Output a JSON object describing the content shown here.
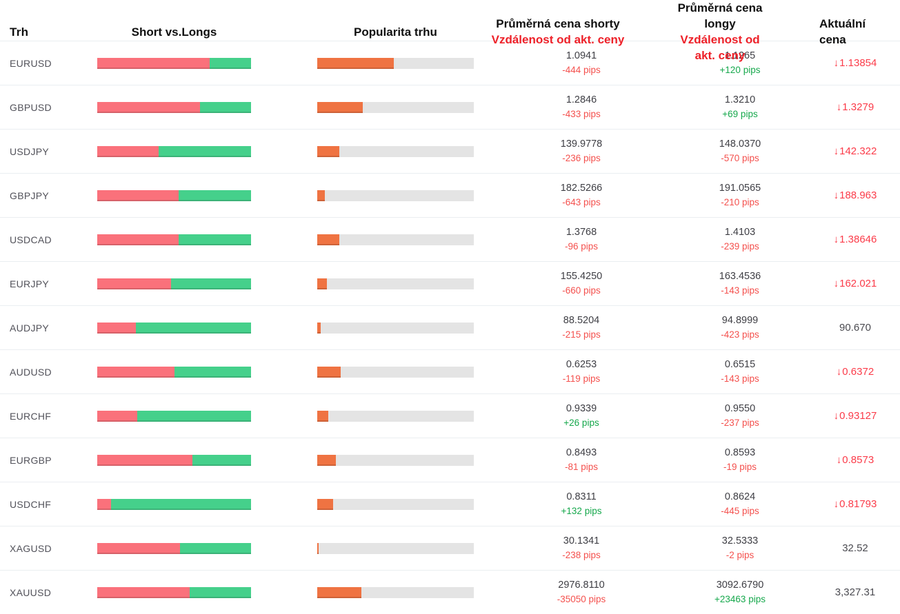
{
  "header": {
    "market": "Trh",
    "sentiment": "Short vs.Longs",
    "popularity": "Popularita trhu",
    "short_price_line1": "Průměrná cena shorty",
    "short_price_line2": "Vzdálenost od akt. ceny",
    "long_price_line1": "Průměrná cena longy",
    "long_price_line2": "Vzdálenost od akt. ceny",
    "current_line1": "Aktuální",
    "current_line2": "cena"
  },
  "icons": {
    "down_arrow": "↓"
  },
  "colors": {
    "sentiment_short": "#fa717b",
    "sentiment_long": "#45d08b",
    "popularity": "#ef7342",
    "bar_track": "#e4e4e4",
    "negative": "#f4504d",
    "positive": "#16a84c",
    "price_down": "#fb3b49",
    "header_red": "#ee2129"
  },
  "rows": [
    {
      "market": "EURUSD",
      "shorts_pct": 73,
      "longs_pct": 27,
      "popularity_pct": 49,
      "short_price": "1.0941",
      "short_pips": "-444 pips",
      "long_price": "1.1265",
      "long_pips": "+120 pips",
      "current_price": "1.13854",
      "current_trend": "down"
    },
    {
      "market": "GBPUSD",
      "shorts_pct": 67,
      "longs_pct": 33,
      "popularity_pct": 29,
      "short_price": "1.2846",
      "short_pips": "-433 pips",
      "long_price": "1.3210",
      "long_pips": "+69 pips",
      "current_price": "1.3279",
      "current_trend": "down"
    },
    {
      "market": "USDJPY",
      "shorts_pct": 40,
      "longs_pct": 60,
      "popularity_pct": 14,
      "short_price": "139.9778",
      "short_pips": "-236 pips",
      "long_price": "148.0370",
      "long_pips": "-570 pips",
      "current_price": "142.322",
      "current_trend": "down"
    },
    {
      "market": "GBPJPY",
      "shorts_pct": 53,
      "longs_pct": 47,
      "popularity_pct": 5,
      "short_price": "182.5266",
      "short_pips": "-643 pips",
      "long_price": "191.0565",
      "long_pips": "-210 pips",
      "current_price": "188.963",
      "current_trend": "down"
    },
    {
      "market": "USDCAD",
      "shorts_pct": 53,
      "longs_pct": 47,
      "popularity_pct": 14,
      "short_price": "1.3768",
      "short_pips": "-96 pips",
      "long_price": "1.4103",
      "long_pips": "-239 pips",
      "current_price": "1.38646",
      "current_trend": "down"
    },
    {
      "market": "EURJPY",
      "shorts_pct": 48,
      "longs_pct": 52,
      "popularity_pct": 6,
      "short_price": "155.4250",
      "short_pips": "-660 pips",
      "long_price": "163.4536",
      "long_pips": "-143 pips",
      "current_price": "162.021",
      "current_trend": "down"
    },
    {
      "market": "AUDJPY",
      "shorts_pct": 25,
      "longs_pct": 75,
      "popularity_pct": 2,
      "short_price": "88.5204",
      "short_pips": "-215 pips",
      "long_price": "94.8999",
      "long_pips": "-423 pips",
      "current_price": "90.670",
      "current_trend": "none"
    },
    {
      "market": "AUDUSD",
      "shorts_pct": 50,
      "longs_pct": 50,
      "popularity_pct": 15,
      "short_price": "0.6253",
      "short_pips": "-119 pips",
      "long_price": "0.6515",
      "long_pips": "-143 pips",
      "current_price": "0.6372",
      "current_trend": "down"
    },
    {
      "market": "EURCHF",
      "shorts_pct": 26,
      "longs_pct": 74,
      "popularity_pct": 7,
      "short_price": "0.9339",
      "short_pips": "+26 pips",
      "long_price": "0.9550",
      "long_pips": "-237 pips",
      "current_price": "0.93127",
      "current_trend": "down"
    },
    {
      "market": "EURGBP",
      "shorts_pct": 62,
      "longs_pct": 38,
      "popularity_pct": 12,
      "short_price": "0.8493",
      "short_pips": "-81 pips",
      "long_price": "0.8593",
      "long_pips": "-19 pips",
      "current_price": "0.8573",
      "current_trend": "down"
    },
    {
      "market": "USDCHF",
      "shorts_pct": 9,
      "longs_pct": 91,
      "popularity_pct": 10,
      "short_price": "0.8311",
      "short_pips": "+132 pips",
      "long_price": "0.8624",
      "long_pips": "-445 pips",
      "current_price": "0.81793",
      "current_trend": "down"
    },
    {
      "market": "XAGUSD",
      "shorts_pct": 54,
      "longs_pct": 46,
      "popularity_pct": 1,
      "short_price": "30.1341",
      "short_pips": "-238 pips",
      "long_price": "32.5333",
      "long_pips": "-2 pips",
      "current_price": "32.52",
      "current_trend": "none"
    },
    {
      "market": "XAUUSD",
      "shorts_pct": 60,
      "longs_pct": 40,
      "popularity_pct": 28,
      "short_price": "2976.8110",
      "short_pips": "-35050 pips",
      "long_price": "3092.6790",
      "long_pips": "+23463 pips",
      "current_price": "3,327.31",
      "current_trend": "none"
    }
  ]
}
